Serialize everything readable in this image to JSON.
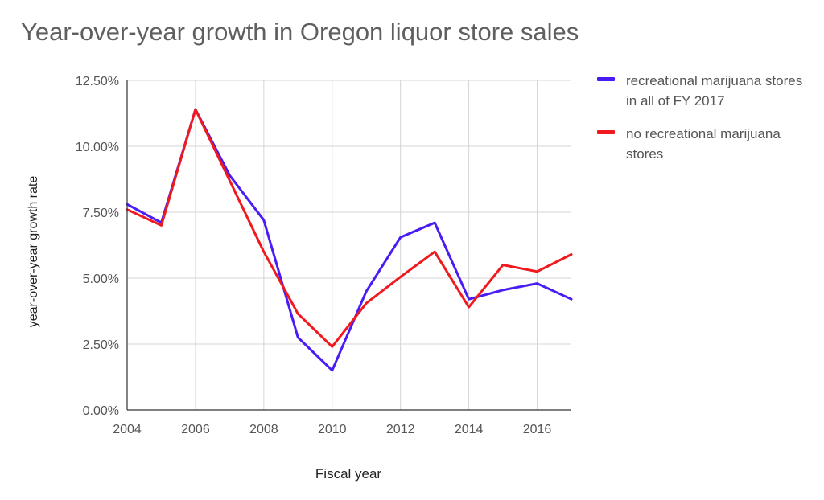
{
  "chart_data": {
    "type": "line",
    "title": "Year-over-year growth in Oregon liquor store sales",
    "xlabel": "Fiscal year",
    "ylabel": "year-over-year growth rate",
    "x": [
      2004,
      2005,
      2006,
      2007,
      2008,
      2009,
      2010,
      2011,
      2012,
      2013,
      2014,
      2015,
      2016,
      2017
    ],
    "xlim": [
      2004,
      2017
    ],
    "xticks": [
      2004,
      2006,
      2008,
      2010,
      2012,
      2014,
      2016
    ],
    "xtick_labels": [
      "2004",
      "2006",
      "2008",
      "2010",
      "2012",
      "2014",
      "2016"
    ],
    "ylim": [
      0,
      0.125
    ],
    "yticks": [
      0,
      0.025,
      0.05,
      0.075,
      0.1,
      0.125
    ],
    "ytick_labels": [
      "0.00%",
      "2.50%",
      "5.00%",
      "7.50%",
      "10.00%",
      "12.50%"
    ],
    "grid": true,
    "legend_position": "right",
    "series": [
      {
        "name": "recreational marijuana stores in all of FY 2017",
        "color": "#4a1cf5",
        "values": [
          0.078,
          0.071,
          0.114,
          0.089,
          0.072,
          0.0275,
          0.015,
          0.045,
          0.0655,
          0.071,
          0.042,
          0.0455,
          0.048,
          0.042
        ]
      },
      {
        "name": "no recreational marijuana stores",
        "color": "#f0191e",
        "values": [
          0.076,
          0.07,
          0.114,
          0.087,
          0.06,
          0.0365,
          0.024,
          0.0405,
          0.0505,
          0.06,
          0.039,
          0.055,
          0.0525,
          0.059
        ]
      }
    ]
  }
}
